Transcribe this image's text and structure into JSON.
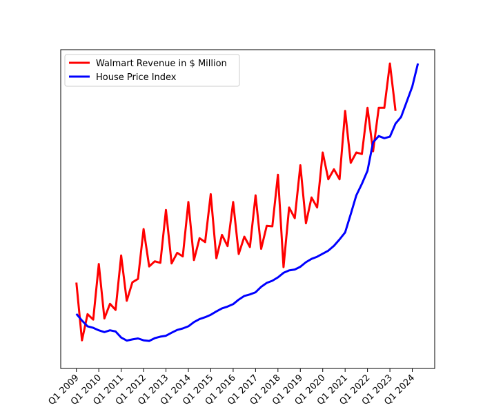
{
  "chart_data": {
    "type": "line",
    "title": "",
    "xlabel": "",
    "ylabel": "",
    "legend_placement": "top-left",
    "grid": false,
    "y_ticks_visible": false,
    "x_tick_labels": [
      "Q1 2009",
      "Q1 2010",
      "Q1 2011",
      "Q1 2012",
      "Q1 2013",
      "Q1 2014",
      "Q1 2015",
      "Q1 2016",
      "Q1 2017",
      "Q1 2018",
      "Q1 2019",
      "Q1 2020",
      "Q1 2021",
      "Q1 2022",
      "Q1 2023",
      "Q1 2024"
    ],
    "x_range_quarters": [
      -0.7,
      16.0
    ],
    "y_range": [
      0,
      100
    ],
    "series": [
      {
        "name": "Walmart Revenue in $ Million",
        "color": "#ff0000",
        "x_start": "Q1 2009",
        "values": [
          23.5,
          4.5,
          13.1,
          11.3,
          29.6,
          11.7,
          16.5,
          14.5,
          32.4,
          17.5,
          23.6,
          24.7,
          41.1,
          28.8,
          30.5,
          30.0,
          47.4,
          29.8,
          33.3,
          32.1,
          50.0,
          30.9,
          38.1,
          36.8,
          52.6,
          31.5,
          39.2,
          35.5,
          50.0,
          32.9,
          38.6,
          35.2,
          52.2,
          34.6,
          42.2,
          42.0,
          59.0,
          28.6,
          48.2,
          44.7,
          62.1,
          43.0,
          51.5,
          48.2,
          66.3,
          57.5,
          60.8,
          57.5,
          80.0,
          62.9,
          66.3,
          65.8,
          81.0,
          66.7,
          81.0,
          81.0,
          95.6,
          80.0
        ]
      },
      {
        "name": "House Price Index",
        "color": "#0000ff",
        "x_start": "Q1 2009",
        "values": [
          13.2,
          11.0,
          9.1,
          8.6,
          7.8,
          7.2,
          7.8,
          7.4,
          5.4,
          4.4,
          4.8,
          5.1,
          4.5,
          4.3,
          5.2,
          5.7,
          6.0,
          7.0,
          7.9,
          8.4,
          9.1,
          10.5,
          11.5,
          12.1,
          12.9,
          14.0,
          15.0,
          15.6,
          16.4,
          17.9,
          19.1,
          19.6,
          20.3,
          22.1,
          23.4,
          24.1,
          25.2,
          26.7,
          27.5,
          27.8,
          28.7,
          30.2,
          31.3,
          32.0,
          33.0,
          34.0,
          35.6,
          37.7,
          40.0,
          46.0,
          52.2,
          56.0,
          60.3,
          69.7,
          71.7,
          71.0,
          71.5,
          75.8,
          78.0,
          83.0,
          88.0,
          95.6
        ]
      }
    ]
  }
}
